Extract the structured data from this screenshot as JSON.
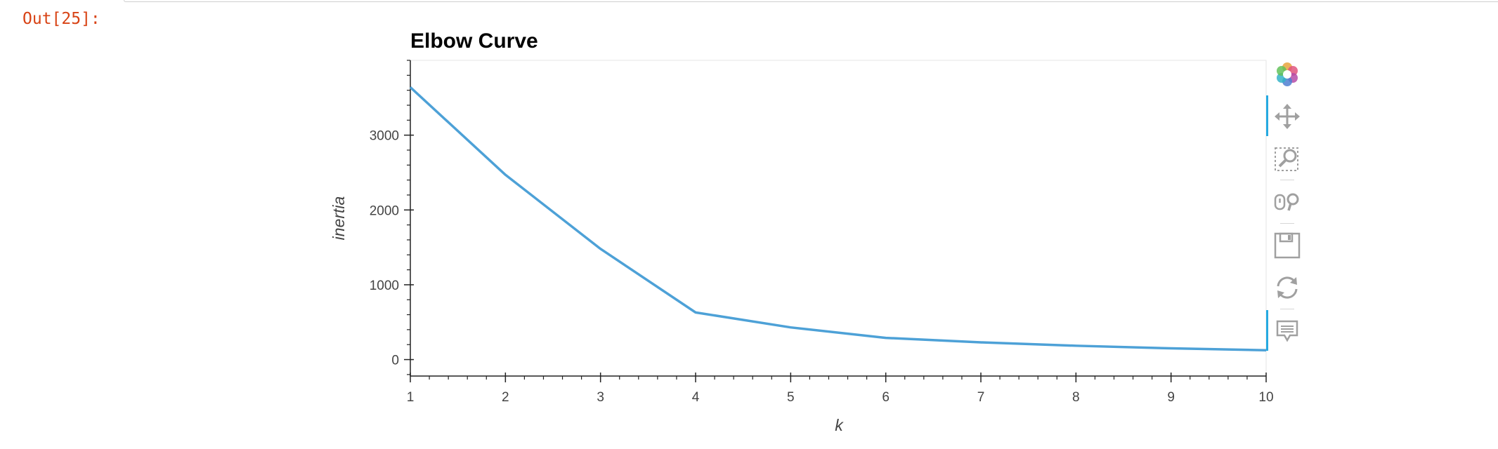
{
  "cell": {
    "prompt": "Out[25]:"
  },
  "chart_data": {
    "type": "line",
    "title": "Elbow Curve",
    "xlabel": "k",
    "ylabel": "inertia",
    "x": [
      1,
      2,
      3,
      4,
      5,
      6,
      7,
      8,
      9,
      10
    ],
    "series": [
      {
        "values": [
          3640,
          2470,
          1480,
          630,
          430,
          290,
          230,
          185,
          150,
          125
        ]
      }
    ],
    "xlim": [
      1,
      10
    ],
    "ylim": [
      -220,
      4000
    ],
    "x_ticks": [
      1,
      2,
      3,
      4,
      5,
      6,
      7,
      8,
      9,
      10
    ],
    "y_ticks": [
      0,
      1000,
      2000,
      3000
    ],
    "grid": false,
    "legend": "none",
    "line_color": "#4da1d7"
  },
  "toolbar": {
    "tools": [
      {
        "name": "bokeh-logo-icon",
        "active": false
      },
      {
        "name": "pan-icon",
        "active": true
      },
      {
        "name": "box-zoom-icon",
        "active": false
      },
      {
        "name": "wheel-zoom-icon",
        "active": false
      },
      {
        "name": "save-icon",
        "active": false
      },
      {
        "name": "reset-icon",
        "active": false
      },
      {
        "name": "hover-icon",
        "active": true
      }
    ],
    "active_color": "#26aae1",
    "icon_color": "#a0a0a0"
  }
}
